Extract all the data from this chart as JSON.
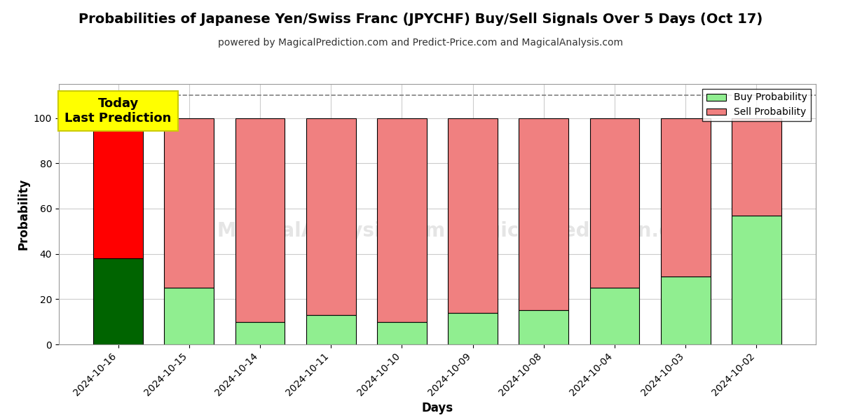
{
  "title": "Probabilities of Japanese Yen/Swiss Franc (JPYCHF) Buy/Sell Signals Over 5 Days (Oct 17)",
  "subtitle": "powered by MagicalPrediction.com and Predict-Price.com and MagicalAnalysis.com",
  "xlabel": "Days",
  "ylabel": "Probability",
  "dates": [
    "2024-10-16",
    "2024-10-15",
    "2024-10-14",
    "2024-10-11",
    "2024-10-10",
    "2024-10-09",
    "2024-10-08",
    "2024-10-04",
    "2024-10-03",
    "2024-10-02"
  ],
  "buy_values": [
    38,
    25,
    10,
    13,
    10,
    14,
    15,
    25,
    30,
    57
  ],
  "sell_values": [
    62,
    75,
    90,
    87,
    90,
    86,
    85,
    75,
    70,
    43
  ],
  "today_buy_color": "#006400",
  "today_sell_color": "#FF0000",
  "buy_color": "#90EE90",
  "sell_color": "#F08080",
  "today_label_bg": "#FFFF00",
  "today_label_text": "Today\nLast Prediction",
  "legend_buy_label": "Buy Probability",
  "legend_sell_label": "Sell Probability",
  "dashed_line_y": 110,
  "ylim": [
    0,
    115
  ],
  "yticks": [
    0,
    20,
    40,
    60,
    80,
    100
  ],
  "bar_edge_color": "#000000",
  "bar_width": 0.7,
  "watermark_text1": "MagicalAnalysis.com",
  "watermark_text2": "MagicalPrediction.com",
  "background_color": "#ffffff",
  "grid_color": "#cccccc",
  "title_fontsize": 14,
  "subtitle_fontsize": 10,
  "axis_label_fontsize": 12,
  "tick_fontsize": 10,
  "legend_fontsize": 10
}
